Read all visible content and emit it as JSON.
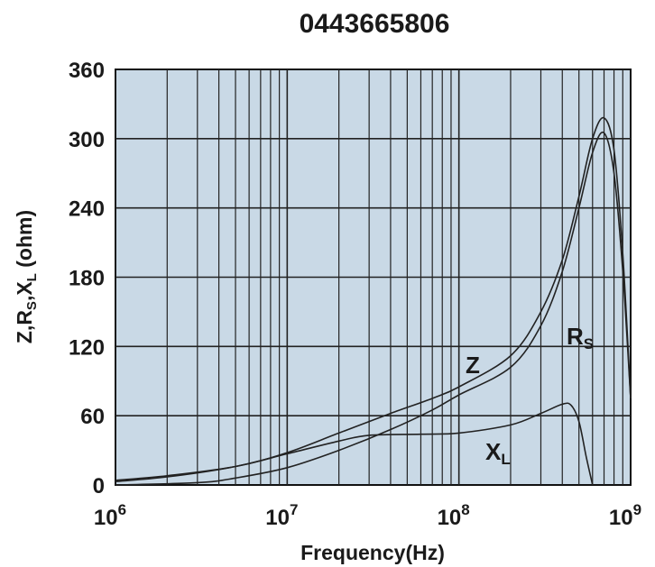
{
  "chart_data": {
    "type": "line",
    "title": "0443665806",
    "xlabel": "Frequency(Hz)",
    "ylabel": "Z,RS,XL (ohm)",
    "x_scale": "log",
    "xlim": [
      1000000,
      1000000000
    ],
    "ylim": [
      0,
      360
    ],
    "x_ticks": [
      {
        "base": "10",
        "exp": "6"
      },
      {
        "base": "10",
        "exp": "7"
      },
      {
        "base": "10",
        "exp": "8"
      },
      {
        "base": "10",
        "exp": "9"
      }
    ],
    "y_ticks": [
      "0",
      "60",
      "120",
      "180",
      "240",
      "300",
      "360"
    ],
    "grid": true,
    "plot_background": "#c9d9e6",
    "line_color": "#222222",
    "series": [
      {
        "name": "Z",
        "label_main": "Z",
        "label_sub": "",
        "points": [
          [
            1000000,
            4
          ],
          [
            2000000,
            8
          ],
          [
            5000000,
            16
          ],
          [
            10000000,
            28
          ],
          [
            20000000,
            45
          ],
          [
            40000000,
            62
          ],
          [
            70000000,
            75
          ],
          [
            100000000,
            85
          ],
          [
            200000000,
            112
          ],
          [
            300000000,
            150
          ],
          [
            400000000,
            195
          ],
          [
            500000000,
            250
          ],
          [
            600000000,
            300
          ],
          [
            700000000,
            318
          ],
          [
            800000000,
            290
          ],
          [
            900000000,
            200
          ],
          [
            1000000000,
            75
          ]
        ]
      },
      {
        "name": "RS",
        "label_main": "R",
        "label_sub": "S",
        "points": [
          [
            1000000,
            0
          ],
          [
            3000000,
            2
          ],
          [
            5000000,
            6
          ],
          [
            10000000,
            15
          ],
          [
            20000000,
            30
          ],
          [
            40000000,
            48
          ],
          [
            70000000,
            65
          ],
          [
            100000000,
            78
          ],
          [
            200000000,
            102
          ],
          [
            300000000,
            138
          ],
          [
            400000000,
            185
          ],
          [
            500000000,
            240
          ],
          [
            600000000,
            288
          ],
          [
            700000000,
            305
          ],
          [
            800000000,
            270
          ],
          [
            900000000,
            185
          ],
          [
            1000000000,
            75
          ]
        ]
      },
      {
        "name": "XL",
        "label_main": "X",
        "label_sub": "L",
        "points": [
          [
            1000000,
            3
          ],
          [
            2000000,
            7
          ],
          [
            5000000,
            16
          ],
          [
            10000000,
            27
          ],
          [
            20000000,
            38
          ],
          [
            30000000,
            43
          ],
          [
            60000000,
            44
          ],
          [
            100000000,
            45
          ],
          [
            200000000,
            52
          ],
          [
            300000000,
            62
          ],
          [
            400000000,
            70
          ],
          [
            450000000,
            69
          ],
          [
            500000000,
            55
          ],
          [
            550000000,
            25
          ],
          [
            600000000,
            0
          ]
        ]
      }
    ]
  }
}
